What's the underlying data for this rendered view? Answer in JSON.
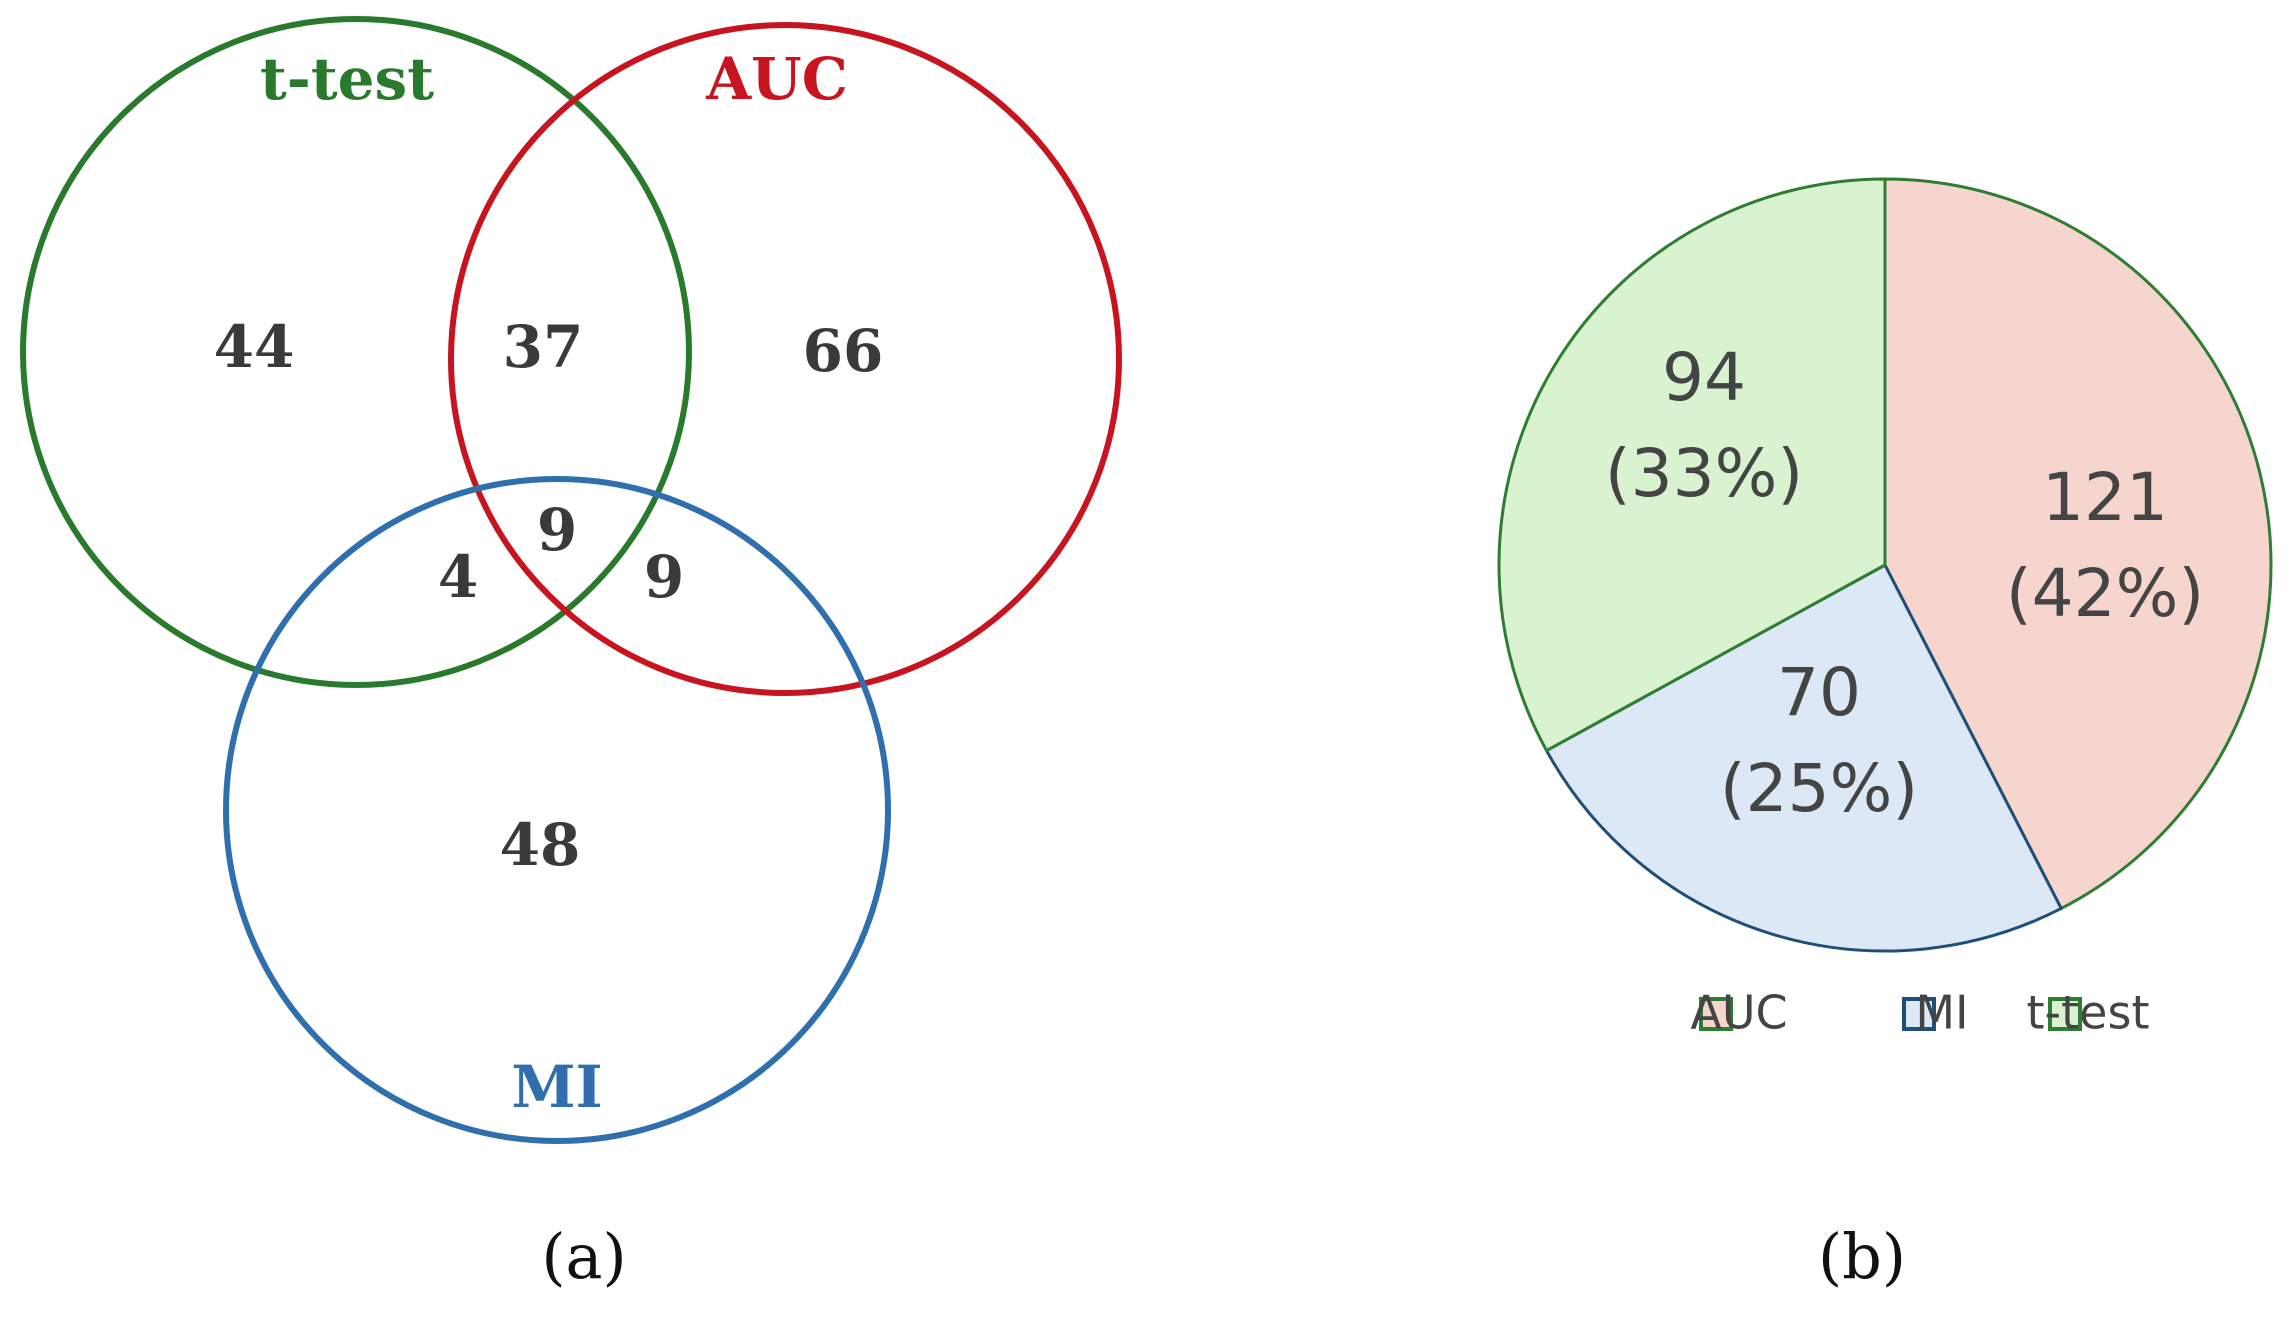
{
  "chart_data": [
    {
      "type": "venn",
      "sets": [
        {
          "name": "t-test",
          "color": "#2a7a2e"
        },
        {
          "name": "AUC",
          "color": "#c8141f"
        },
        {
          "name": "MI",
          "color": "#2f6fae"
        }
      ],
      "values": [
        44,
        37,
        66,
        9,
        4,
        9,
        48
      ],
      "caption": "(a)"
    },
    {
      "type": "pie",
      "categories": [
        "AUC",
        "MI",
        "t-test"
      ],
      "values": [
        121,
        70,
        94
      ],
      "percents": [
        42,
        25,
        33
      ],
      "percent_labels": [
        "(42%)",
        "(25%)",
        "(33%)"
      ],
      "colors": [
        "#f5d5cd",
        "#dce8f5",
        "#d9f2d0"
      ],
      "edge_colors": [
        "#2e7d32",
        "#1f4e79",
        "#2e7d32"
      ],
      "caption": "(b)"
    }
  ]
}
